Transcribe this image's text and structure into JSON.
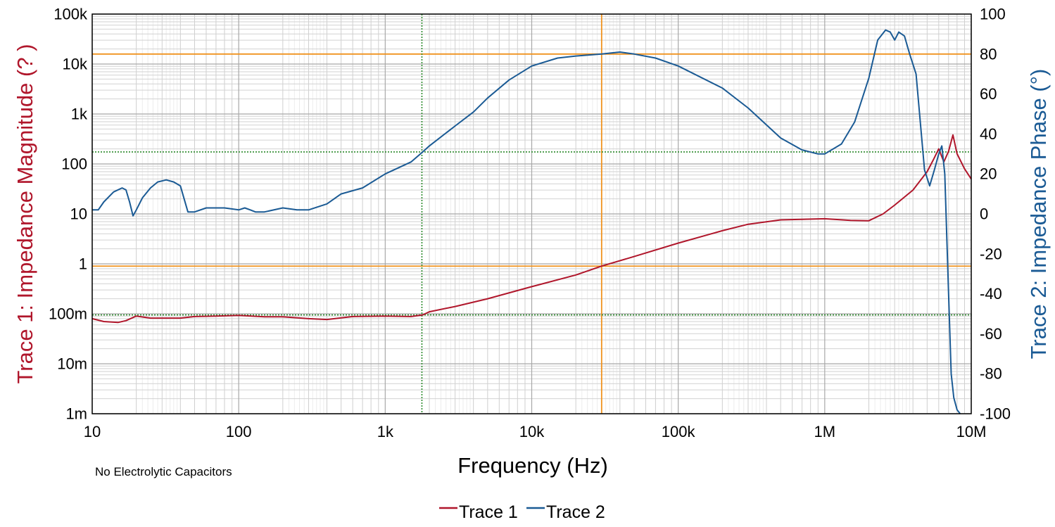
{
  "chart_data": {
    "type": "line",
    "xlabel": "Frequency (Hz)",
    "xscale": "log",
    "xlim": [
      10,
      10000000
    ],
    "x_ticks": [
      {
        "v": 10,
        "label": "10"
      },
      {
        "v": 100,
        "label": "100"
      },
      {
        "v": 1000,
        "label": "1k"
      },
      {
        "v": 10000,
        "label": "10k"
      },
      {
        "v": 100000,
        "label": "100k"
      },
      {
        "v": 1000000,
        "label": "1M"
      },
      {
        "v": 10000000,
        "label": "10M"
      }
    ],
    "y_left": {
      "label": "Trace 1: Impedance Magnitude (? )",
      "color": "#b0162b",
      "scale": "log",
      "lim": [
        0.001,
        100000
      ],
      "ticks": [
        {
          "v": 100000,
          "label": "100k"
        },
        {
          "v": 10000,
          "label": "10k"
        },
        {
          "v": 1000,
          "label": "1k"
        },
        {
          "v": 100,
          "label": "100"
        },
        {
          "v": 10,
          "label": "10"
        },
        {
          "v": 1,
          "label": "1"
        },
        {
          "v": 0.1,
          "label": "100m"
        },
        {
          "v": 0.01,
          "label": "10m"
        },
        {
          "v": 0.001,
          "label": "1m"
        }
      ]
    },
    "y_right": {
      "label": "Trace 2: Impedance Phase (°)",
      "color": "#1a5a94",
      "scale": "linear",
      "lim": [
        -100,
        100
      ],
      "ticks": [
        100,
        80,
        60,
        40,
        20,
        0,
        -20,
        -40,
        -60,
        -80,
        -100
      ]
    },
    "grid": true,
    "series": [
      {
        "name": "Trace 1",
        "axis": "left",
        "color": "#b0162b",
        "x": [
          10,
          12,
          15,
          17,
          20,
          25,
          30,
          40,
          50,
          70,
          100,
          150,
          200,
          300,
          400,
          600,
          1000,
          1500,
          1800,
          2000,
          3000,
          5000,
          10000,
          20000,
          30000,
          50000,
          100000,
          200000,
          300000,
          500000,
          1000000,
          1500000,
          2000000,
          2500000,
          3000000,
          4000000,
          5000000,
          5500000,
          6000000,
          6500000,
          7000000,
          7500000,
          8000000,
          9000000,
          10000000
        ],
        "y": [
          0.08,
          0.07,
          0.067,
          0.073,
          0.09,
          0.082,
          0.082,
          0.082,
          0.088,
          0.09,
          0.093,
          0.087,
          0.087,
          0.08,
          0.077,
          0.088,
          0.09,
          0.088,
          0.095,
          0.11,
          0.14,
          0.2,
          0.35,
          0.6,
          0.9,
          1.4,
          2.6,
          4.6,
          6.2,
          7.6,
          8.0,
          7.4,
          7.3,
          10,
          15,
          30,
          70,
          120,
          200,
          110,
          180,
          380,
          160,
          80,
          50
        ]
      },
      {
        "name": "Trace 2",
        "axis": "right",
        "color": "#1a5a94",
        "x": [
          10,
          11,
          12,
          14,
          16,
          17,
          18,
          19,
          20,
          22,
          25,
          28,
          32,
          36,
          40,
          45,
          50,
          60,
          70,
          80,
          100,
          110,
          120,
          130,
          150,
          200,
          250,
          300,
          400,
          500,
          700,
          1000,
          1500,
          1800,
          2000,
          3000,
          4000,
          5000,
          7000,
          10000,
          15000,
          20000,
          30000,
          40000,
          50000,
          70000,
          100000,
          200000,
          300000,
          500000,
          700000,
          900000,
          1000000,
          1300000,
          1600000,
          2000000,
          2300000,
          2600000,
          2800000,
          3000000,
          3200000,
          3500000,
          3800000,
          4200000,
          4800000,
          5200000,
          5600000,
          6000000,
          6300000,
          6600000,
          7000000,
          7300000,
          7600000,
          8000000,
          8400000
        ],
        "y": [
          2,
          2,
          6,
          11,
          13,
          12,
          6,
          -1,
          2,
          8,
          13,
          16,
          17,
          16,
          14,
          1,
          1,
          3,
          3,
          3,
          2,
          3,
          2,
          1,
          1,
          3,
          2,
          2,
          5,
          10,
          13,
          20,
          26,
          31,
          34,
          44,
          51,
          58,
          67,
          74,
          78,
          79,
          80,
          81,
          80,
          78,
          74,
          63,
          53,
          38,
          32,
          30,
          30,
          35,
          46,
          68,
          87,
          92,
          91,
          87,
          91,
          89,
          80,
          70,
          22,
          14,
          22,
          30,
          34,
          20,
          -40,
          -80,
          -92,
          -98,
          -100
        ]
      }
    ],
    "markers": {
      "orange_cursor": {
        "x": 30000,
        "y_left": 0.9,
        "y_right": 80
      },
      "green_cursor": {
        "x": 1780,
        "y_left": 0.095,
        "y_right": 31
      }
    },
    "annotation": "No Electrolytic Capacitors",
    "legend": {
      "position": "bottom-center",
      "items": [
        "Trace 1",
        "Trace 2"
      ]
    }
  }
}
